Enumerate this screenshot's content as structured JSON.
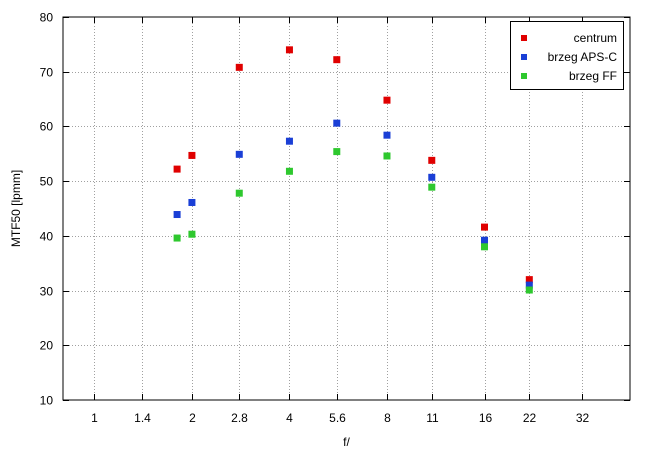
{
  "chart_data": {
    "type": "scatter",
    "title": "",
    "xlabel": "f/",
    "ylabel": "MTF50 [lpmm]",
    "x_scale": "log",
    "xlim": [
      0.8,
      45
    ],
    "ylim": [
      10,
      80
    ],
    "x_ticks": [
      {
        "value": 1,
        "label": "1"
      },
      {
        "value": 1.4,
        "label": "1.4"
      },
      {
        "value": 2,
        "label": "2"
      },
      {
        "value": 2.8,
        "label": "2.8"
      },
      {
        "value": 4,
        "label": "4"
      },
      {
        "value": 5.6,
        "label": "5.6"
      },
      {
        "value": 8,
        "label": "8"
      },
      {
        "value": 11,
        "label": "11"
      },
      {
        "value": 16,
        "label": "16"
      },
      {
        "value": 22,
        "label": "22"
      },
      {
        "value": 32,
        "label": "32"
      }
    ],
    "y_ticks": [
      10,
      20,
      30,
      40,
      50,
      60,
      70,
      80
    ],
    "grid": true,
    "legend_position": "top-right",
    "series": [
      {
        "name": "centrum",
        "color": "#e00000",
        "x": [
          1.8,
          2.0,
          2.8,
          4.0,
          5.6,
          8.0,
          11.0,
          16.0,
          22.0
        ],
        "y": [
          52.2,
          54.7,
          70.8,
          74.0,
          72.2,
          64.8,
          53.8,
          41.6,
          32.0
        ]
      },
      {
        "name": "brzeg APS-C",
        "color": "#1a3fd6",
        "x": [
          1.8,
          2.0,
          2.8,
          4.0,
          5.6,
          8.0,
          11.0,
          16.0,
          22.0
        ],
        "y": [
          43.9,
          46.1,
          54.9,
          57.3,
          60.6,
          58.4,
          50.7,
          39.2,
          31.0
        ]
      },
      {
        "name": "brzeg FF",
        "color": "#2ec82e",
        "x": [
          1.8,
          2.0,
          2.8,
          4.0,
          5.6,
          8.0,
          11.0,
          16.0,
          22.0
        ],
        "y": [
          39.6,
          40.3,
          47.8,
          51.8,
          55.4,
          54.6,
          48.9,
          38.0,
          30.1
        ]
      }
    ]
  }
}
